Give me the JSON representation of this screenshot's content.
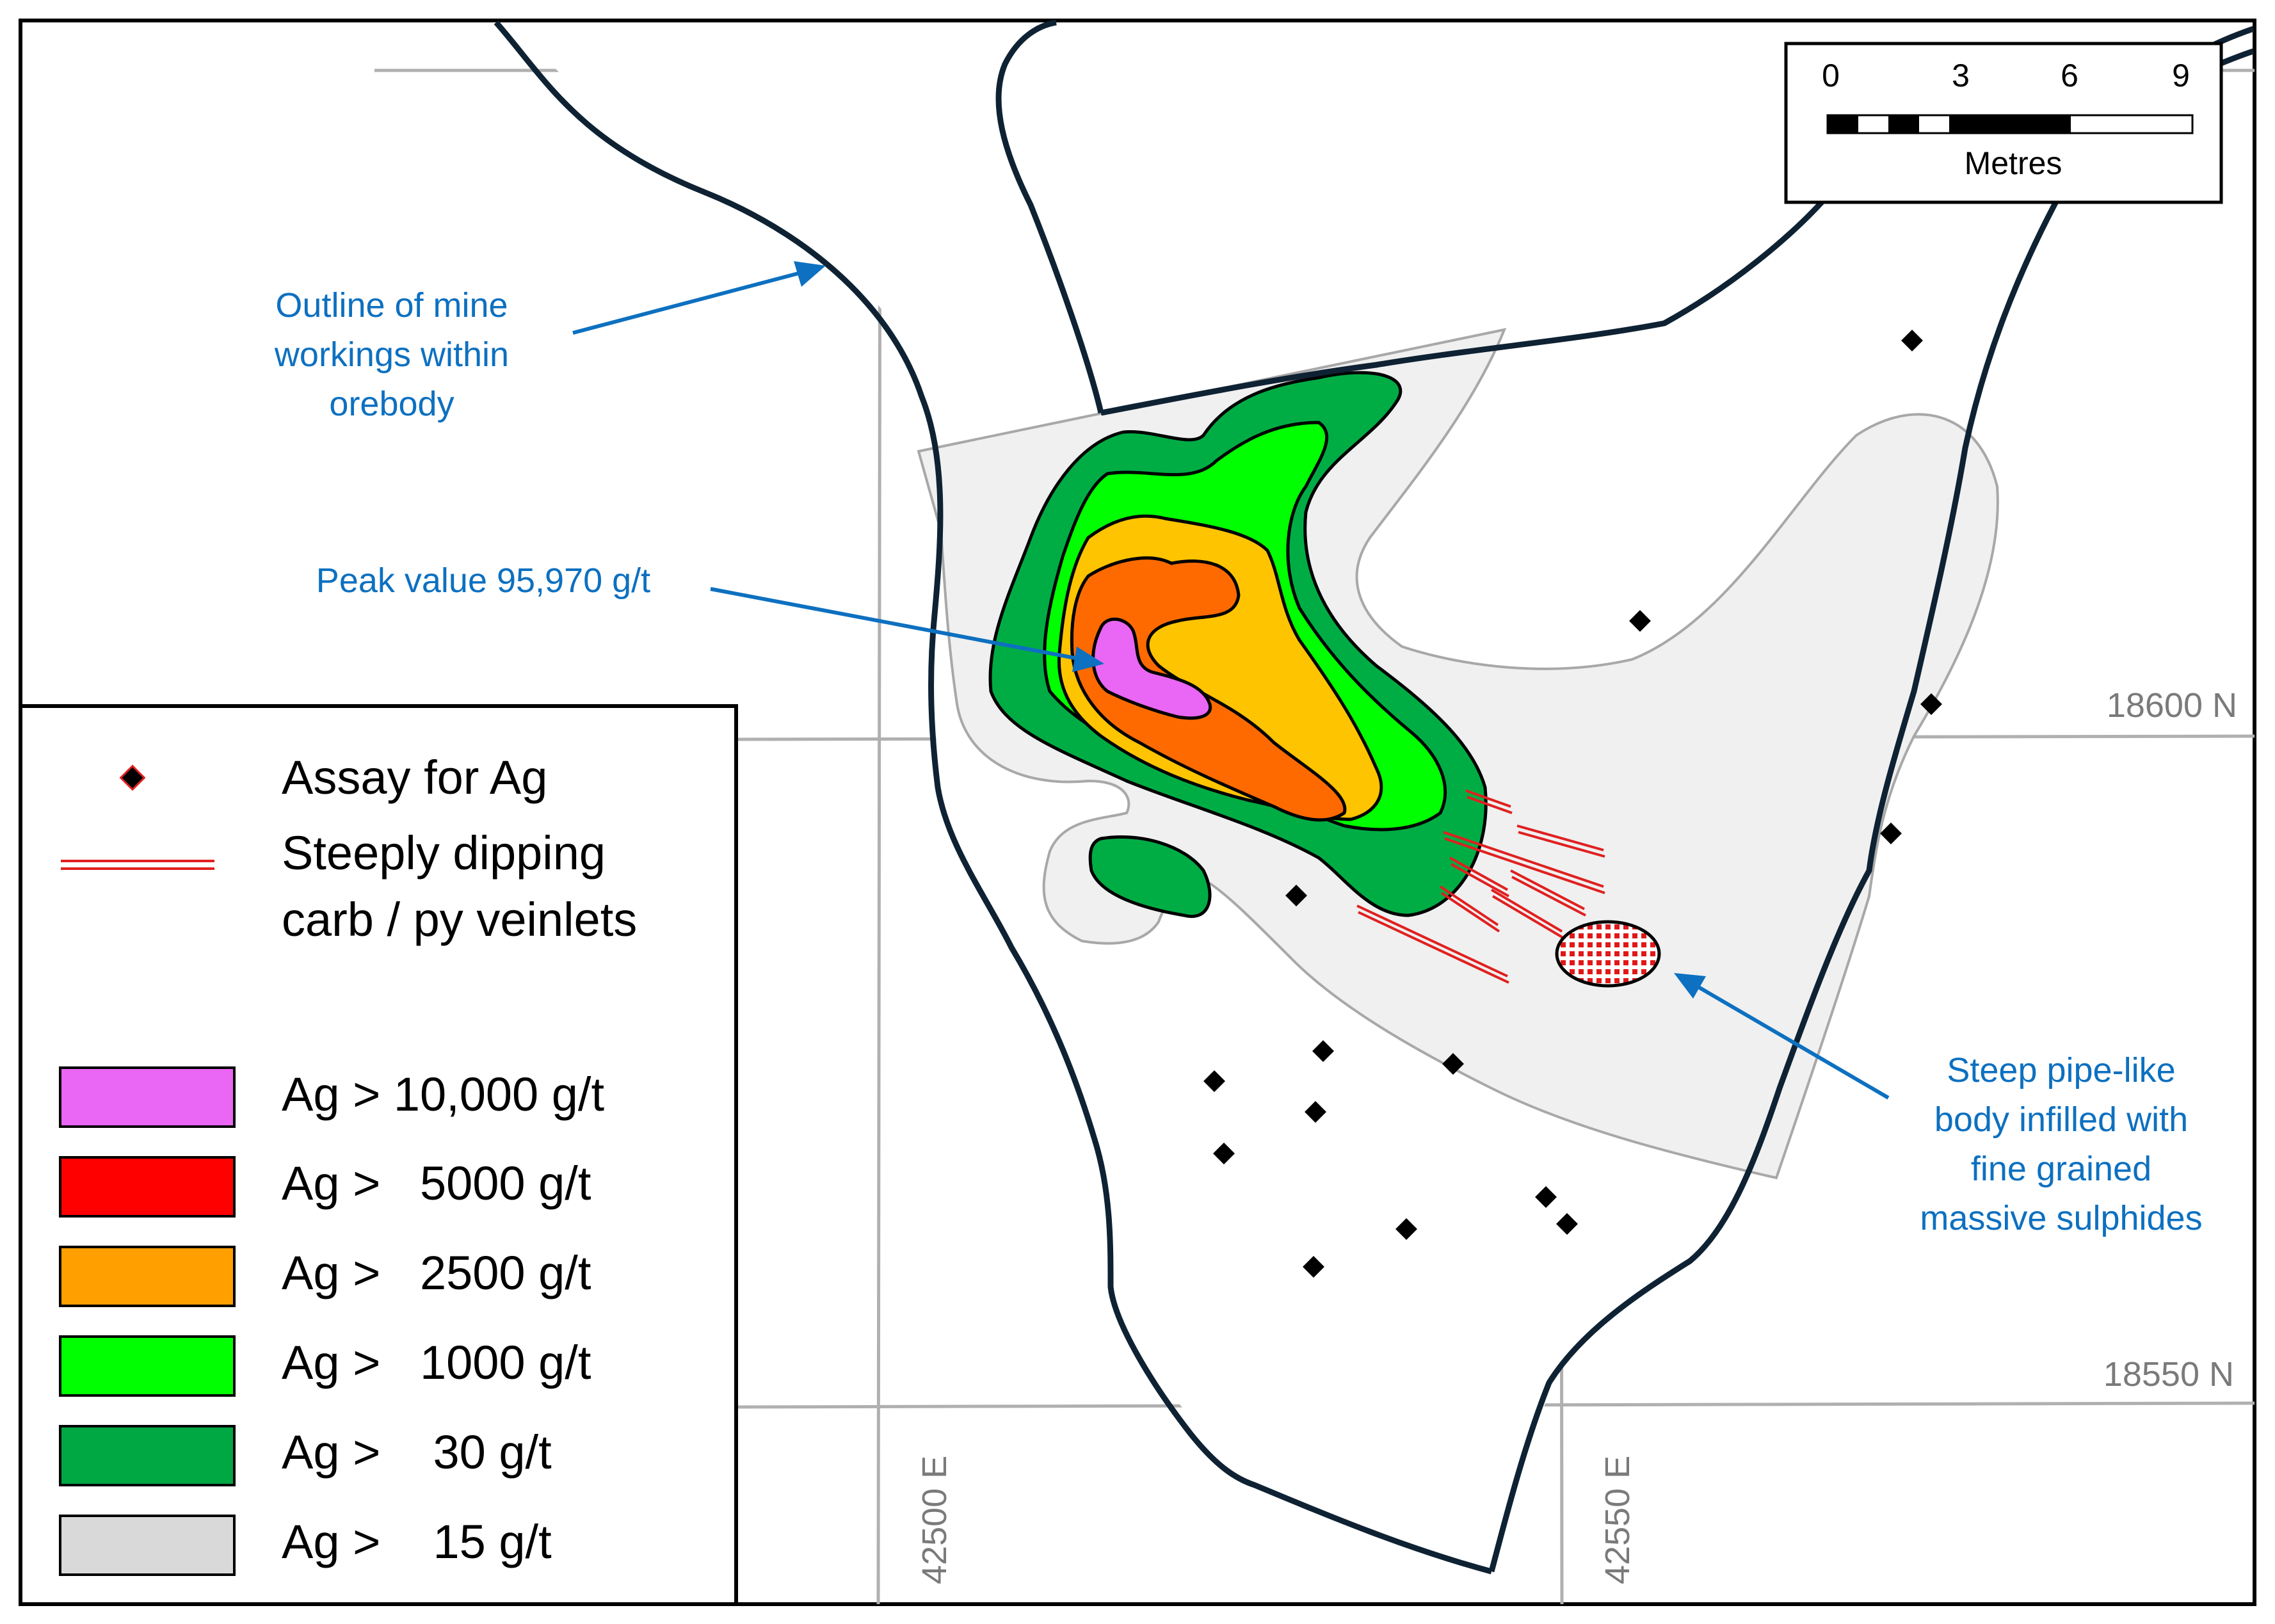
{
  "map": {
    "grid": {
      "easting_labels": [
        "42500 E",
        "42550 E"
      ],
      "northing_labels": [
        "18600 N",
        "18550 N"
      ]
    },
    "scale_bar": {
      "ticks": [
        "0",
        "3",
        "6",
        "9"
      ],
      "unit": "Metres"
    },
    "annotations": {
      "outline": [
        "Outline of mine",
        "workings within",
        "orebody"
      ],
      "peak": "Peak value 95,970 g/t",
      "pipe": [
        "Steep pipe-like",
        "body infilled with",
        "fine grained",
        "massive sulphides"
      ]
    },
    "legend": {
      "symbols": [
        {
          "label": [
            "Assay for Ag"
          ],
          "icon": "diamond-icon"
        },
        {
          "label": [
            "Steeply dipping",
            "carb / py veinlets"
          ],
          "icon": "double-line-icon"
        }
      ],
      "classes": [
        {
          "label": "Ag > 10,000 g/t",
          "color": "#ea66f4"
        },
        {
          "label": "Ag >   5000 g/t",
          "color": "#ff0000"
        },
        {
          "label": "Ag >   2500 g/t",
          "color": "#ff9f00"
        },
        {
          "label": "Ag >   1000 g/t",
          "color": "#00ff00"
        },
        {
          "label": "Ag >    30 g/t",
          "color": "#00a844"
        },
        {
          "label": "Ag >    15 g/t",
          "color": "#d9d9d9"
        }
      ]
    },
    "colors": {
      "pink": "#ea66f4",
      "orange_red": "#ff6a00",
      "amber": "#ffc400",
      "bright_green": "#00ff00",
      "dark_green": "#00ad45",
      "light_grey": "#f0f0f0",
      "outline": "#0e2233",
      "grid": "#b0b0b0",
      "annotation": "#0d70c0",
      "veinlet": "#e02020"
    }
  }
}
